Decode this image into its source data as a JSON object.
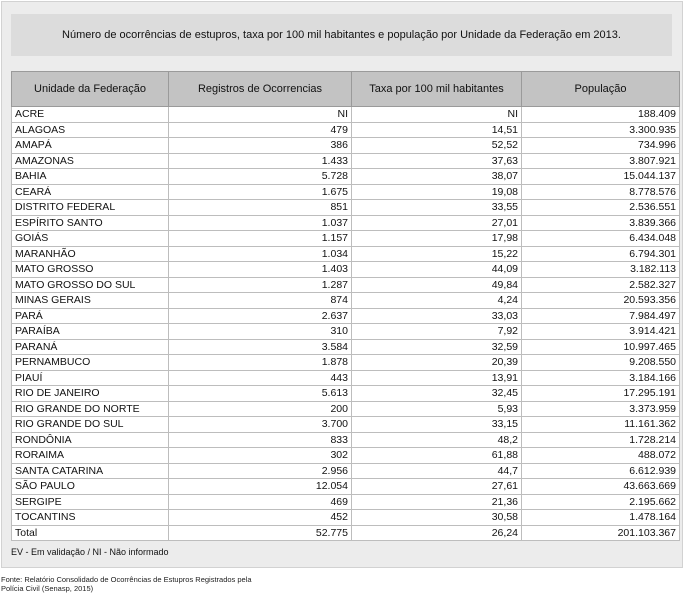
{
  "title": "Número de ocorrências de estupros, taxa por 100 mil habitantes e população por Unidade da Federação em 2013.",
  "columns": [
    "Unidade da Federação",
    "Registros de Ocorrencias",
    "Taxa por 100 mil habitantes",
    "População"
  ],
  "rows": [
    {
      "uf": "ACRE",
      "registros": "NI",
      "taxa": "NI",
      "populacao": "188.409"
    },
    {
      "uf": "ALAGOAS",
      "registros": "479",
      "taxa": "14,51",
      "populacao": "3.300.935"
    },
    {
      "uf": "AMAPÁ",
      "registros": "386",
      "taxa": "52,52",
      "populacao": "734.996"
    },
    {
      "uf": "AMAZONAS",
      "registros": "1.433",
      "taxa": "37,63",
      "populacao": "3.807.921"
    },
    {
      "uf": "BAHIA",
      "registros": "5.728",
      "taxa": "38,07",
      "populacao": "15.044.137"
    },
    {
      "uf": "CEARÁ",
      "registros": "1.675",
      "taxa": "19,08",
      "populacao": "8.778.576"
    },
    {
      "uf": "DISTRITO FEDERAL",
      "registros": "851",
      "taxa": "33,55",
      "populacao": "2.536.551"
    },
    {
      "uf": "ESPÍRITO SANTO",
      "registros": "1.037",
      "taxa": "27,01",
      "populacao": "3.839.366"
    },
    {
      "uf": "GOIÁS",
      "registros": "1.157",
      "taxa": "17,98",
      "populacao": "6.434.048"
    },
    {
      "uf": "MARANHÃO",
      "registros": "1.034",
      "taxa": "15,22",
      "populacao": "6.794.301"
    },
    {
      "uf": "MATO GROSSO",
      "registros": "1.403",
      "taxa": "44,09",
      "populacao": "3.182.113"
    },
    {
      "uf": "MATO GROSSO DO SUL",
      "registros": "1.287",
      "taxa": "49,84",
      "populacao": "2.582.327"
    },
    {
      "uf": "MINAS GERAIS",
      "registros": "874",
      "taxa": "4,24",
      "populacao": "20.593.356"
    },
    {
      "uf": "PARÁ",
      "registros": "2.637",
      "taxa": "33,03",
      "populacao": "7.984.497"
    },
    {
      "uf": "PARAÍBA",
      "registros": "310",
      "taxa": "7,92",
      "populacao": "3.914.421"
    },
    {
      "uf": "PARANÁ",
      "registros": "3.584",
      "taxa": "32,59",
      "populacao": "10.997.465"
    },
    {
      "uf": "PERNAMBUCO",
      "registros": "1.878",
      "taxa": "20,39",
      "populacao": "9.208.550"
    },
    {
      "uf": "PIAUÍ",
      "registros": "443",
      "taxa": "13,91",
      "populacao": "3.184.166"
    },
    {
      "uf": "RIO DE JANEIRO",
      "registros": "5.613",
      "taxa": "32,45",
      "populacao": "17.295.191"
    },
    {
      "uf": "RIO GRANDE DO NORTE",
      "registros": "200",
      "taxa": "5,93",
      "populacao": "3.373.959"
    },
    {
      "uf": "RIO GRANDE DO SUL",
      "registros": "3.700",
      "taxa": "33,15",
      "populacao": "11.161.362"
    },
    {
      "uf": "RONDÔNIA",
      "registros": "833",
      "taxa": "48,2",
      "populacao": "1.728.214"
    },
    {
      "uf": "RORAIMA",
      "registros": "302",
      "taxa": "61,88",
      "populacao": "488.072"
    },
    {
      "uf": "SANTA CATARINA",
      "registros": "2.956",
      "taxa": "44,7",
      "populacao": "6.612.939"
    },
    {
      "uf": "SÃO PAULO",
      "registros": "12.054",
      "taxa": "27,61",
      "populacao": "43.663.669"
    },
    {
      "uf": "SERGIPE",
      "registros": "469",
      "taxa": "21,36",
      "populacao": "2.195.662"
    },
    {
      "uf": "TOCANTINS",
      "registros": "452",
      "taxa": "30,58",
      "populacao": "1.478.164"
    }
  ],
  "total": {
    "uf": "Total",
    "registros": "52.775",
    "taxa": "26,24",
    "populacao": "201.103.367"
  },
  "legend": "EV - Em validação / NI - Não informado",
  "source_line1": "Fonte: Relatório Consolidado de Ocorrências de Estupros Registrados pela",
  "source_line2": "Polícia Civil (Senasp, 2015)"
}
